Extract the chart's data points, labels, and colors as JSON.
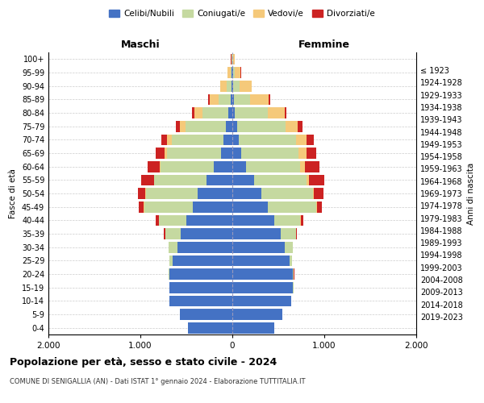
{
  "age_groups": [
    "0-4",
    "5-9",
    "10-14",
    "15-19",
    "20-24",
    "25-29",
    "30-34",
    "35-39",
    "40-44",
    "45-49",
    "50-54",
    "55-59",
    "60-64",
    "65-69",
    "70-74",
    "75-79",
    "80-84",
    "85-89",
    "90-94",
    "95-99",
    "100+"
  ],
  "birth_years": [
    "2019-2023",
    "2014-2018",
    "2009-2013",
    "2004-2008",
    "1999-2003",
    "1994-1998",
    "1989-1993",
    "1984-1988",
    "1979-1983",
    "1974-1978",
    "1969-1973",
    "1964-1968",
    "1959-1963",
    "1954-1958",
    "1949-1953",
    "1944-1948",
    "1939-1943",
    "1934-1938",
    "1929-1933",
    "1924-1928",
    "≤ 1923"
  ],
  "colors": {
    "celibi": "#4472C4",
    "coniugati": "#C5D9A0",
    "vedovi": "#F5C97A",
    "divorziati": "#CC2222"
  },
  "maschi": {
    "celibi": [
      480,
      570,
      680,
      680,
      680,
      650,
      600,
      560,
      500,
      430,
      380,
      280,
      200,
      120,
      100,
      70,
      45,
      20,
      10,
      5,
      2
    ],
    "coniugati": [
      0,
      0,
      0,
      5,
      15,
      30,
      90,
      170,
      300,
      530,
      560,
      570,
      580,
      590,
      560,
      440,
      280,
      130,
      50,
      15,
      3
    ],
    "vedovi": [
      0,
      0,
      0,
      0,
      0,
      0,
      0,
      0,
      0,
      5,
      5,
      5,
      10,
      30,
      50,
      60,
      90,
      100,
      70,
      30,
      8
    ],
    "divorziati": [
      0,
      0,
      0,
      0,
      2,
      3,
      5,
      15,
      30,
      50,
      80,
      140,
      130,
      90,
      60,
      40,
      20,
      10,
      5,
      2,
      1
    ]
  },
  "femmine": {
    "celibi": [
      460,
      540,
      640,
      660,
      660,
      620,
      570,
      530,
      460,
      390,
      320,
      240,
      150,
      100,
      70,
      50,
      30,
      15,
      8,
      5,
      2
    ],
    "coniugati": [
      0,
      0,
      0,
      5,
      10,
      30,
      85,
      160,
      280,
      520,
      560,
      570,
      590,
      620,
      620,
      530,
      360,
      180,
      70,
      20,
      4
    ],
    "vedovi": [
      0,
      0,
      0,
      0,
      0,
      0,
      0,
      0,
      5,
      8,
      10,
      20,
      50,
      90,
      120,
      130,
      180,
      200,
      130,
      65,
      20
    ],
    "divorziati": [
      0,
      0,
      0,
      0,
      2,
      3,
      5,
      15,
      30,
      60,
      100,
      170,
      160,
      100,
      80,
      50,
      20,
      15,
      5,
      3,
      1
    ]
  },
  "xlim": 2000,
  "xticks": [
    -2000,
    -1000,
    0,
    1000,
    2000
  ],
  "xticklabels": [
    "2.000",
    "1.000",
    "0",
    "1.000",
    "2.000"
  ],
  "title": "Popolazione per età, sesso e stato civile - 2024",
  "subtitle": "COMUNE DI SENIGALLIA (AN) - Dati ISTAT 1° gennaio 2024 - Elaborazione TUTTITALIA.IT",
  "ylabel_left": "Fasce di età",
  "ylabel_right": "Anni di nascita",
  "label_maschi": "Maschi",
  "label_femmine": "Femmine",
  "legend_labels": [
    "Celibi/Nubili",
    "Coniugati/e",
    "Vedovi/e",
    "Divorziati/e"
  ],
  "background_color": "#FFFFFF",
  "bar_height": 0.82
}
